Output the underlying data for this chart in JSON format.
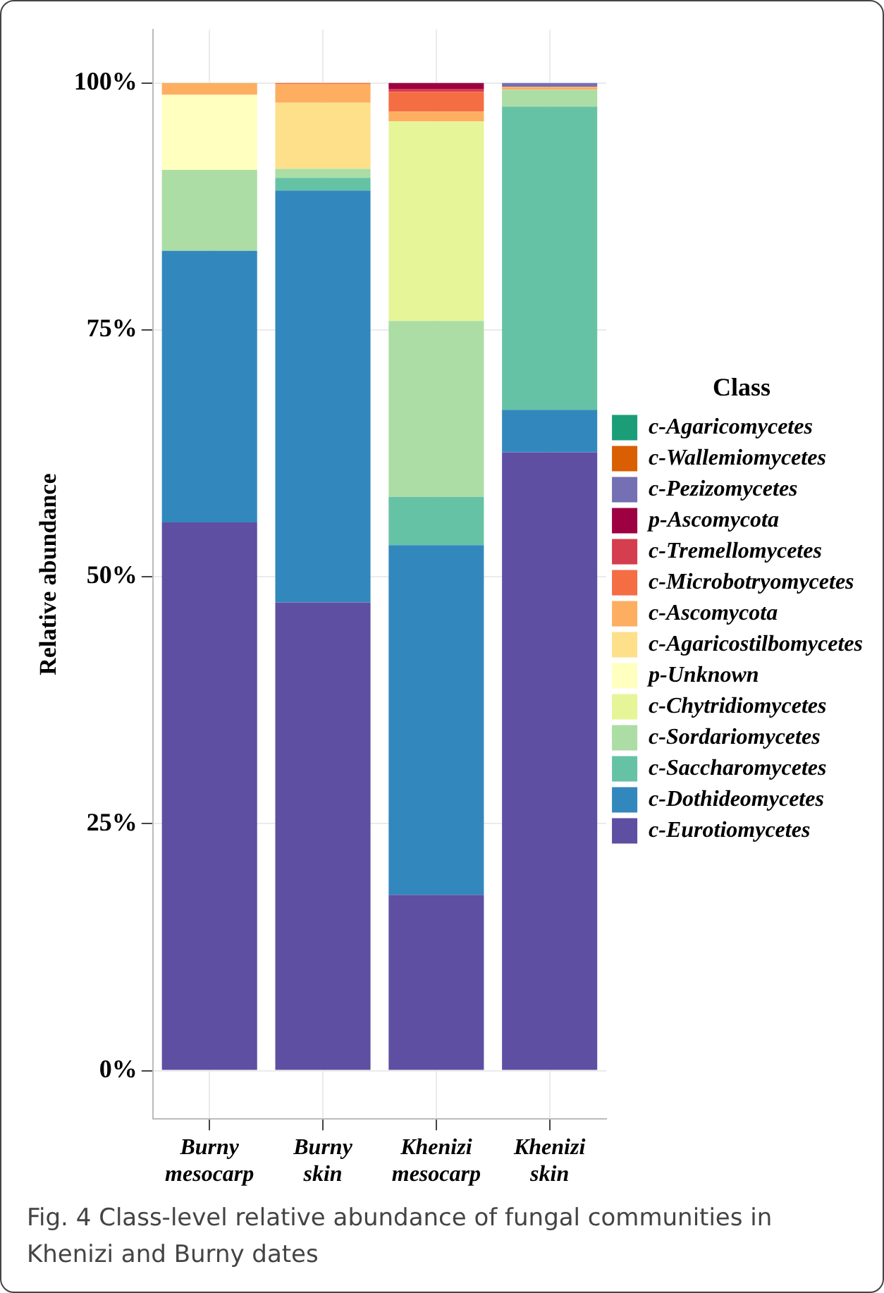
{
  "chart_data": {
    "type": "bar",
    "stacked": true,
    "ylabel": "Relative abundance",
    "legend_title": "Class",
    "legend": "right",
    "grid": true,
    "categories": [
      "Burny mesocarp",
      "Burny skin",
      "Khenizi mesocarp",
      "Khenizi skin"
    ],
    "ylim": [
      -4.9,
      105.4
    ],
    "yticks": [
      {
        "value": 0,
        "label": "0%"
      },
      {
        "value": 25,
        "label": "25%"
      },
      {
        "value": 50,
        "label": "50%"
      },
      {
        "value": 75,
        "label": "75%"
      },
      {
        "value": 100,
        "label": "100%"
      }
    ],
    "series": [
      {
        "name": "c-Eurotiomycetes",
        "color": "#5e4fa2",
        "values": [
          55.5,
          47.4,
          17.8,
          62.6
        ]
      },
      {
        "name": "c-Dothideomycetes",
        "color": "#3288bd",
        "values": [
          27.5,
          41.7,
          35.4,
          4.3
        ]
      },
      {
        "name": "c-Saccharomycetes",
        "color": "#66c2a5",
        "values": [
          0,
          1.3,
          4.9,
          30.7
        ]
      },
      {
        "name": "c-Sordariomycetes",
        "color": "#abdda4",
        "values": [
          8.2,
          0.9,
          17.8,
          1.7
        ]
      },
      {
        "name": "c-Chytridiomycetes",
        "color": "#e6f598",
        "values": [
          0,
          0,
          20.2,
          0
        ]
      },
      {
        "name": "p-Unknown",
        "color": "#ffffbf",
        "values": [
          7.6,
          0,
          0,
          0
        ]
      },
      {
        "name": "c-Agaricostilbomycetes",
        "color": "#fee08b",
        "values": [
          0,
          6.7,
          0,
          0
        ]
      },
      {
        "name": "c-Ascomycota",
        "color": "#fdae61",
        "values": [
          1.2,
          1.9,
          1.0,
          0.3
        ]
      },
      {
        "name": "c-Microbotryomycetes",
        "color": "#f46d43",
        "values": [
          0,
          0.1,
          2.0,
          0
        ]
      },
      {
        "name": "c-Tremellomycetes",
        "color": "#d53e4f",
        "values": [
          0,
          0,
          0.3,
          0
        ]
      },
      {
        "name": "p-Ascomycota",
        "color": "#9e0142",
        "values": [
          0,
          0,
          0.6,
          0
        ]
      },
      {
        "name": "c-Pezizomycetes",
        "color": "#7570b3",
        "values": [
          0,
          0,
          0,
          0.4
        ]
      },
      {
        "name": "c-Wallemiomycetes",
        "color": "#d95f02",
        "values": [
          0,
          0,
          0,
          0
        ]
      },
      {
        "name": "c-Agaricomycetes",
        "color": "#1b9e77",
        "values": [
          0,
          0,
          0,
          0
        ]
      }
    ],
    "annotations": [
      "Fig. 4 Class-level relative abundance of fungal communities in Khenizi and Burny dates"
    ]
  }
}
